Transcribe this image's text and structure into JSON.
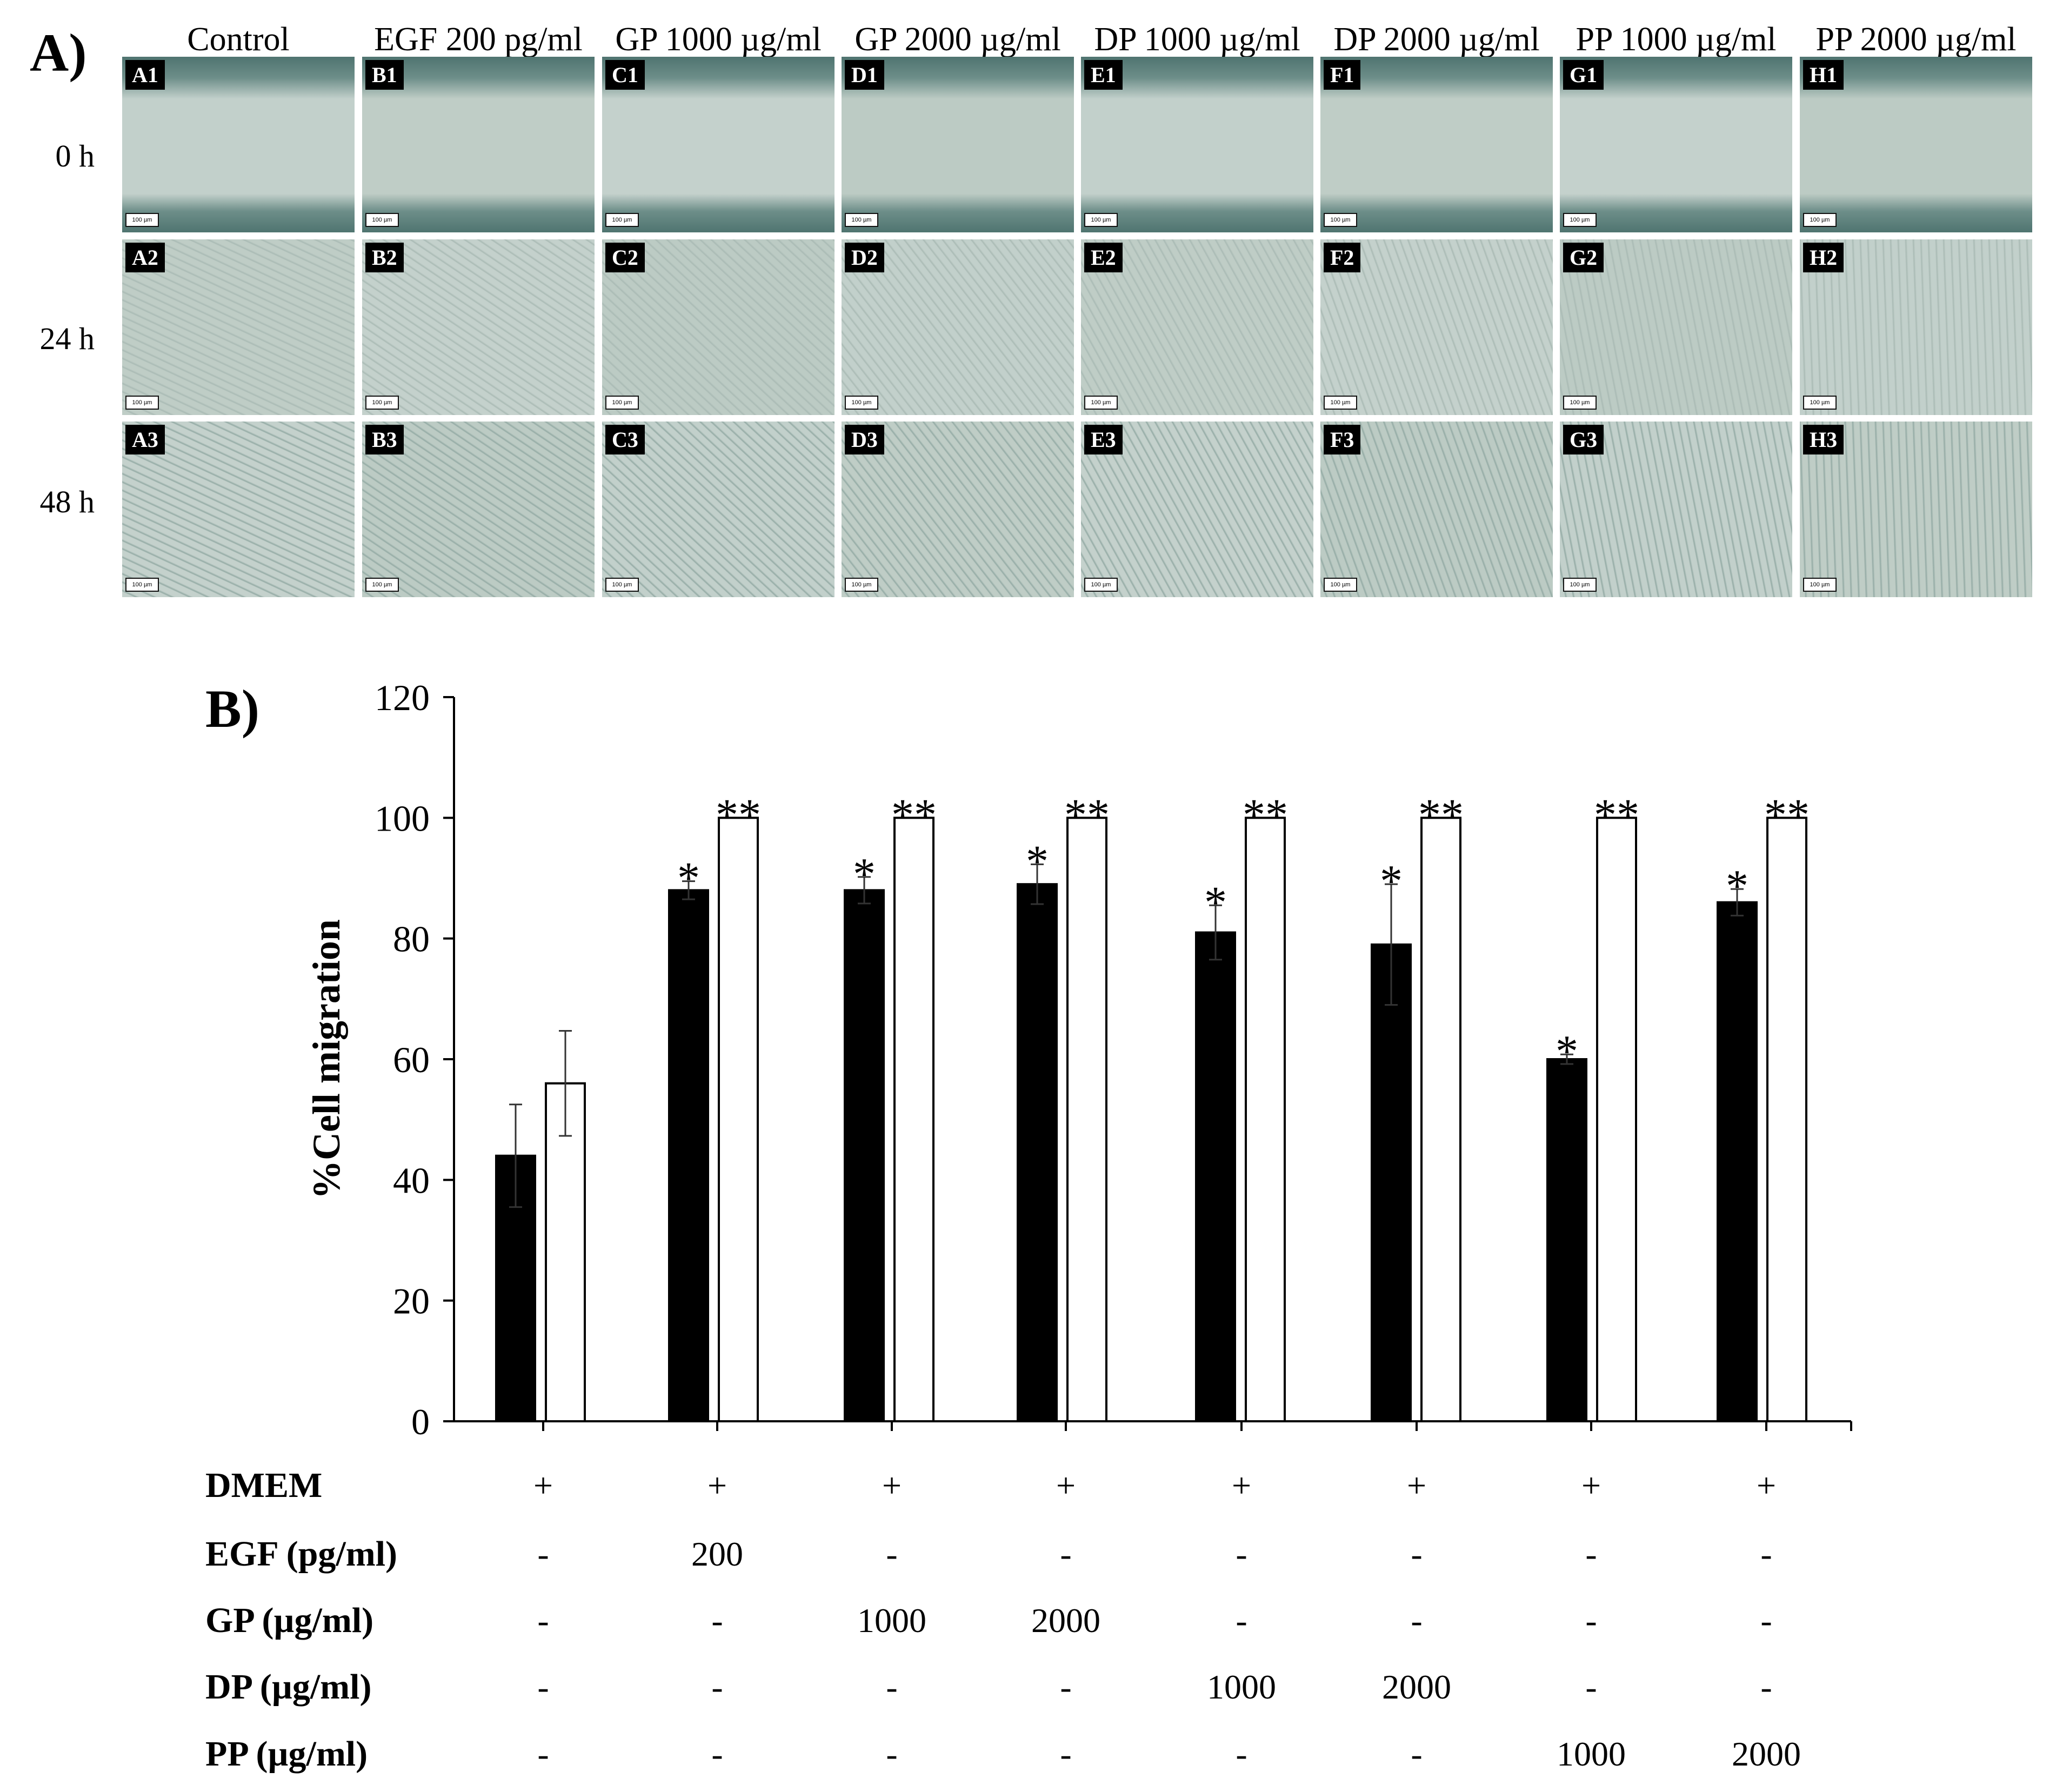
{
  "panel_a": {
    "label": "A)",
    "columns": [
      "Control",
      "EGF 200 pg/ml",
      "GP 1000 µg/ml",
      "GP 2000 µg/ml",
      "DP 1000 µg/ml",
      "DP 2000 µg/ml",
      "PP 1000 µg/ml",
      "PP 2000 µg/ml"
    ],
    "rows": [
      "0 h",
      "24 h",
      "48 h"
    ],
    "tags": [
      [
        "A1",
        "B1",
        "C1",
        "D1",
        "E1",
        "F1",
        "G1",
        "H1"
      ],
      [
        "A2",
        "B2",
        "C2",
        "D2",
        "E2",
        "F2",
        "G2",
        "H2"
      ],
      [
        "A3",
        "B3",
        "C3",
        "D3",
        "E3",
        "F3",
        "G3",
        "H3"
      ]
    ],
    "scale_bar_label": "100 µm"
  },
  "chart_data": {
    "type": "bar",
    "panel_label": "B)",
    "ylabel": "%Cell migration",
    "ylim": [
      0,
      120
    ],
    "yticks": [
      0,
      20,
      40,
      60,
      80,
      100,
      120
    ],
    "grid": false,
    "series": [
      {
        "color": "#000000",
        "values": [
          44,
          88,
          88,
          89,
          81,
          79,
          60,
          86
        ],
        "errors": [
          8.5,
          1.5,
          2.2,
          3.3,
          4.5,
          10,
          0.8,
          2.2
        ],
        "markers": [
          "",
          "*",
          "*",
          "*",
          "*",
          "*",
          "*",
          "*"
        ]
      },
      {
        "color": "#ffffff",
        "values": [
          56,
          100,
          100,
          100,
          100,
          100,
          100,
          100
        ],
        "errors": [
          8.7,
          0,
          0,
          0,
          0,
          0,
          0,
          0
        ],
        "markers": [
          "",
          "**",
          "**",
          "**",
          "**",
          "**",
          "**",
          "**"
        ]
      }
    ],
    "treatment_table": [
      {
        "label": "DMEM",
        "values": [
          "+",
          "+",
          "+",
          "+",
          "+",
          "+",
          "+",
          "+"
        ]
      },
      {
        "label": "EGF (pg/ml)",
        "values": [
          "-",
          "200",
          "-",
          "-",
          "-",
          "-",
          "-",
          "-"
        ]
      },
      {
        "label": "GP (µg/ml)",
        "values": [
          "-",
          "-",
          "1000",
          "2000",
          "-",
          "-",
          "-",
          "-"
        ]
      },
      {
        "label": "DP (µg/ml)",
        "values": [
          "-",
          "-",
          "-",
          "-",
          "1000",
          "2000",
          "-",
          "-"
        ]
      },
      {
        "label": "PP (µg/ml)",
        "values": [
          "-",
          "-",
          "-",
          "-",
          "-",
          "-",
          "1000",
          "2000"
        ]
      }
    ]
  }
}
